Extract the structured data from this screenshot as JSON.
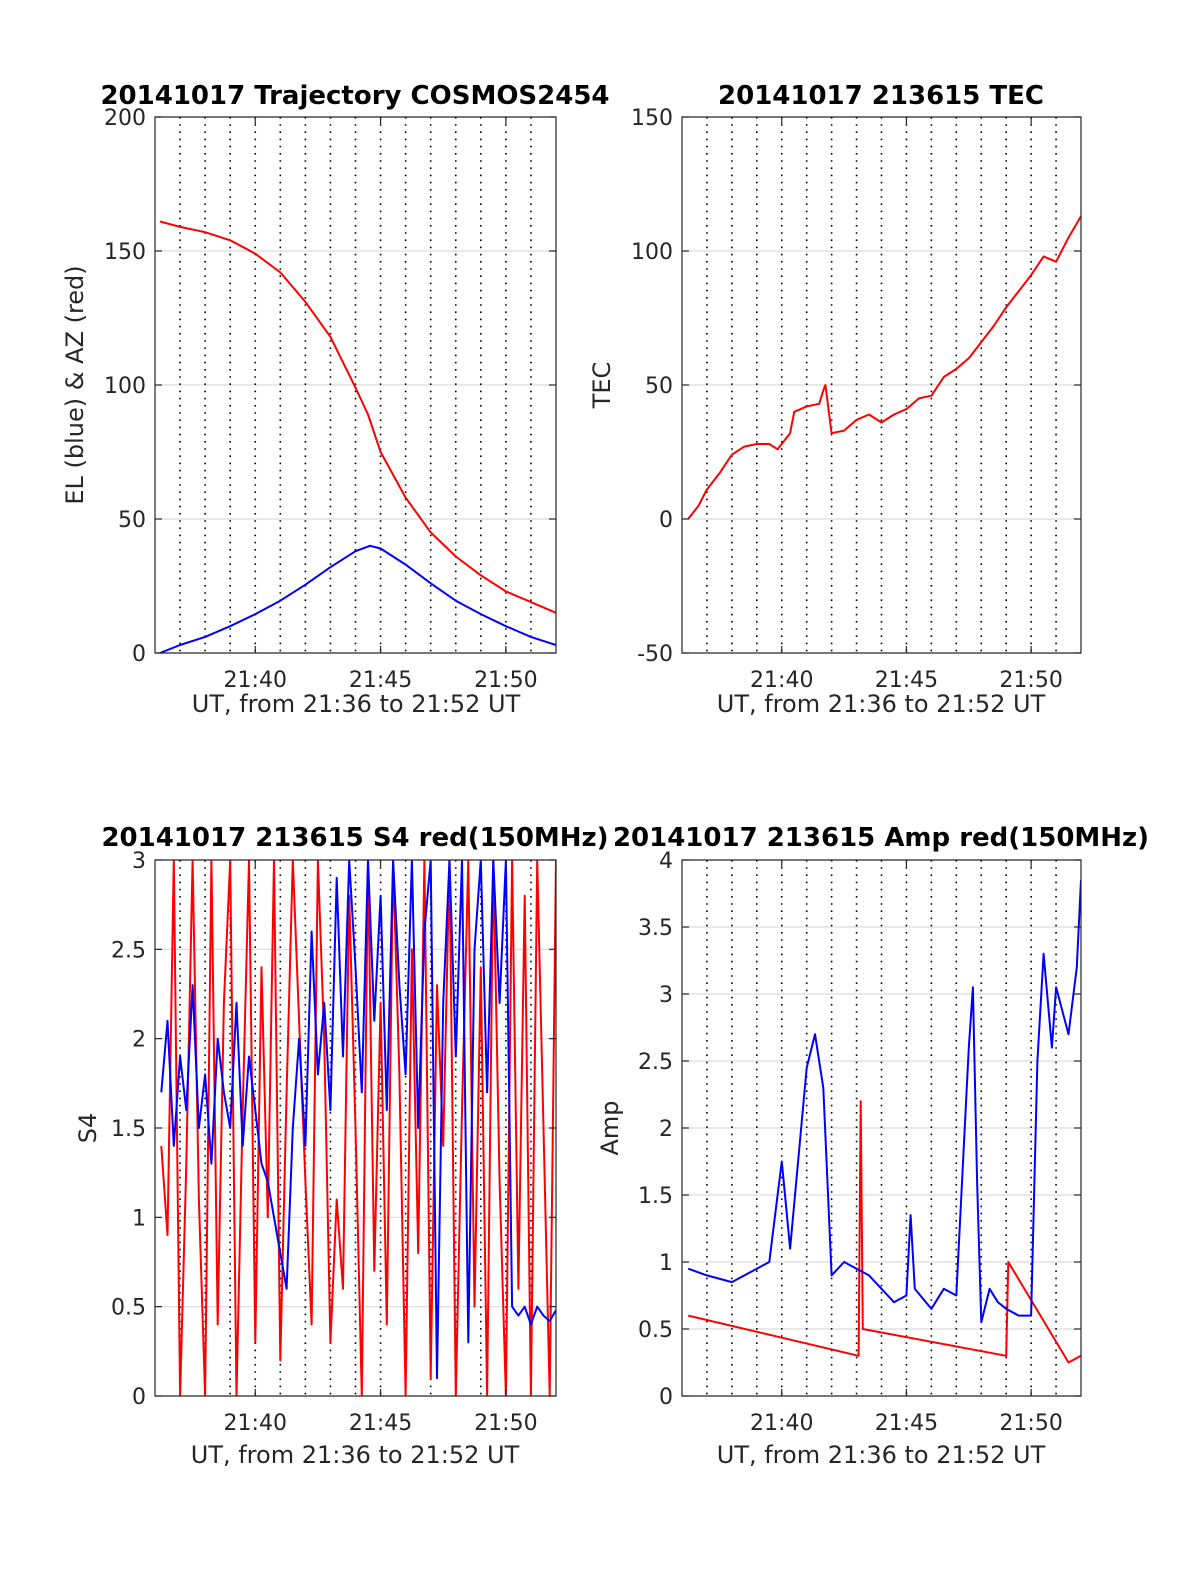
{
  "chart_data": [
    {
      "id": "traj",
      "type": "line",
      "title": "20141017 Trajectory COSMOS2454",
      "xlabel": "UT, from 21:36 to 21:52 UT",
      "ylabel": "EL (blue) & AZ (red)",
      "xlim": [
        "21:36",
        "21:52"
      ],
      "ylim": [
        0,
        200
      ],
      "yticks": [
        0,
        50,
        100,
        150,
        200
      ],
      "xtick_labels": [
        "21:40",
        "21:45",
        "21:50"
      ],
      "grid": "horizontal solid, vertical dotted every minute",
      "series": [
        {
          "color": "#ff0000",
          "x": [
            "21:36:12",
            "21:37",
            "21:38",
            "21:39",
            "21:40",
            "21:41",
            "21:42",
            "21:43",
            "21:44",
            "21:44:30",
            "21:45",
            "21:46",
            "21:47",
            "21:48",
            "21:49",
            "21:50",
            "21:51",
            "21:52"
          ],
          "y": [
            161,
            159,
            157,
            154,
            149,
            142,
            131,
            118,
            99,
            89,
            75,
            58,
            45,
            36,
            29,
            23,
            19,
            15
          ]
        },
        {
          "color": "#0000ff",
          "x": [
            "21:36:12",
            "21:37",
            "21:38",
            "21:39",
            "21:40",
            "21:41",
            "21:42",
            "21:43",
            "21:44",
            "21:44:35",
            "21:45",
            "21:46",
            "21:47",
            "21:48",
            "21:49",
            "21:50",
            "21:51",
            "21:52"
          ],
          "y": [
            0,
            3,
            6,
            10,
            14.5,
            19.5,
            25.5,
            32,
            38,
            40,
            39,
            33,
            26,
            19.5,
            14.5,
            10,
            6,
            3
          ]
        }
      ]
    },
    {
      "id": "tec",
      "type": "line",
      "title": "20141017 213615 TEC",
      "xlabel": "UT, from 21:36 to 21:52 UT",
      "ylabel": "TEC",
      "xlim": [
        "21:36",
        "21:52"
      ],
      "ylim": [
        -50,
        150
      ],
      "yticks": [
        -50,
        0,
        50,
        100,
        150
      ],
      "xtick_labels": [
        "21:40",
        "21:45",
        "21:50"
      ],
      "grid": "horizontal solid, vertical dotted every minute",
      "series": [
        {
          "color": "#ff0000",
          "x": [
            "21:36:15",
            "21:36:40",
            "21:37",
            "21:37:30",
            "21:38",
            "21:38:30",
            "21:39",
            "21:39:30",
            "21:39:50",
            "21:40:20",
            "21:40:30",
            "21:41",
            "21:41:30",
            "21:41:40",
            "21:41:45",
            "21:42",
            "21:42:30",
            "21:43",
            "21:43:30",
            "21:44",
            "21:44:30",
            "21:45",
            "21:45:30",
            "21:46",
            "21:46:30",
            "21:47",
            "21:47:30",
            "21:48",
            "21:48:30",
            "21:49",
            "21:49:30",
            "21:50",
            "21:50:30",
            "21:51",
            "21:51:30",
            "21:52"
          ],
          "y": [
            0,
            5,
            11,
            17,
            24,
            27,
            28,
            28,
            26,
            32,
            40,
            42,
            43,
            48,
            50,
            32,
            33,
            37,
            39,
            36,
            39,
            41,
            45,
            46,
            53,
            56,
            60,
            66,
            72,
            79,
            85,
            91,
            98,
            96,
            105,
            113
          ]
        }
      ]
    },
    {
      "id": "s4",
      "type": "line",
      "title": "20141017 213615 S4 red(150MHz)",
      "xlabel": "UT, from 21:36 to 21:52 UT",
      "ylabel": "S4",
      "xlim": [
        "21:36",
        "21:52"
      ],
      "ylim": [
        0,
        3
      ],
      "yticks": [
        0,
        0.5,
        1,
        1.5,
        2,
        2.5,
        3
      ],
      "xtick_labels": [
        "21:40",
        "21:45",
        "21:50"
      ],
      "grid": "horizontal solid, vertical dotted every minute",
      "series": [
        {
          "color": "#ff0000",
          "x": [
            "21:36:15",
            "21:36:30",
            "21:36:45",
            "21:37",
            "21:37:15",
            "21:37:30",
            "21:37:45",
            "21:38",
            "21:38:15",
            "21:38:30",
            "21:38:45",
            "21:39",
            "21:39:15",
            "21:39:30",
            "21:39:45",
            "21:40",
            "21:40:15",
            "21:40:30",
            "21:40:45",
            "21:41",
            "21:41:15",
            "21:41:30",
            "21:41:45",
            "21:42",
            "21:42:15",
            "21:42:30",
            "21:42:45",
            "21:43",
            "21:43:15",
            "21:43:30",
            "21:43:45",
            "21:44",
            "21:44:15",
            "21:44:30",
            "21:44:45",
            "21:45",
            "21:45:15",
            "21:45:30",
            "21:45:45",
            "21:46",
            "21:46:15",
            "21:46:30",
            "21:46:45",
            "21:47",
            "21:47:15",
            "21:47:30",
            "21:47:45",
            "21:48",
            "21:48:15",
            "21:48:30",
            "21:48:45",
            "21:49",
            "21:49:15",
            "21:49:30",
            "21:49:45",
            "21:50",
            "21:50:15",
            "21:50:30",
            "21:50:45",
            "21:51",
            "21:51:15",
            "21:51:30",
            "21:51:45",
            "21:52"
          ],
          "y": [
            1.4,
            0.9,
            3,
            0,
            1.3,
            3,
            1.1,
            0,
            3,
            0.4,
            2.2,
            3,
            0,
            1.6,
            3,
            0.3,
            2.4,
            1.0,
            3,
            0.2,
            1.7,
            3,
            2.1,
            1.2,
            0.4,
            3,
            2.0,
            0.3,
            1.1,
            0.6,
            2.8,
            1.5,
            0,
            3,
            0.7,
            2.2,
            0.4,
            3,
            1.8,
            0,
            2.5,
            0.8,
            3,
            0.1,
            2.3,
            1.4,
            3,
            0,
            1.6,
            3,
            0.5,
            2.4,
            0,
            3,
            1.2,
            0,
            3,
            0.6,
            2.8,
            0,
            3,
            1.5,
            0,
            3
          ]
        },
        {
          "color": "#0000ff",
          "x": [
            "21:36:15",
            "21:36:30",
            "21:36:45",
            "21:37",
            "21:37:15",
            "21:37:30",
            "21:37:45",
            "21:38",
            "21:38:15",
            "21:38:30",
            "21:38:45",
            "21:39",
            "21:39:15",
            "21:39:30",
            "21:39:45",
            "21:40",
            "21:40:15",
            "21:40:30",
            "21:40:45",
            "21:41",
            "21:41:15",
            "21:41:30",
            "21:41:45",
            "21:42",
            "21:42:15",
            "21:42:30",
            "21:42:45",
            "21:43",
            "21:43:15",
            "21:43:30",
            "21:43:45",
            "21:44",
            "21:44:15",
            "21:44:30",
            "21:44:45",
            "21:45",
            "21:45:15",
            "21:45:30",
            "21:45:45",
            "21:46",
            "21:46:15",
            "21:46:30",
            "21:46:45",
            "21:47",
            "21:47:15",
            "21:47:30",
            "21:47:45",
            "21:48",
            "21:48:15",
            "21:48:30",
            "21:48:45",
            "21:49",
            "21:49:15",
            "21:49:30",
            "21:49:45",
            "21:50",
            "21:50:15",
            "21:50:30",
            "21:50:45",
            "21:51",
            "21:51:15",
            "21:51:30",
            "21:51:45",
            "21:52"
          ],
          "y": [
            1.7,
            2.1,
            1.4,
            1.9,
            1.6,
            2.3,
            1.5,
            1.8,
            1.3,
            2.0,
            1.7,
            1.5,
            2.2,
            1.4,
            1.9,
            1.6,
            1.3,
            1.2,
            1.0,
            0.8,
            0.6,
            1.5,
            2.0,
            1.4,
            2.6,
            1.8,
            2.2,
            1.6,
            2.9,
            1.9,
            3,
            2.4,
            1.7,
            3,
            2.1,
            2.8,
            1.6,
            3,
            2.3,
            1.8,
            3,
            1.5,
            2.6,
            3,
            0.1,
            2.2,
            3,
            1.9,
            3,
            0.3,
            2.5,
            3,
            1.7,
            3,
            2.2,
            3,
            0.5,
            0.45,
            0.5,
            0.4,
            0.5,
            0.45,
            0.42,
            0.48
          ]
        }
      ]
    },
    {
      "id": "amp",
      "type": "line",
      "title": "20141017 213615 Amp red(150MHz)",
      "xlabel": "UT, from 21:36 to 21:52 UT",
      "ylabel": "Amp",
      "xlim": [
        "21:36",
        "21:52"
      ],
      "ylim": [
        0,
        4
      ],
      "yticks": [
        0,
        0.5,
        1,
        1.5,
        2,
        2.5,
        3,
        3.5,
        4
      ],
      "xtick_labels": [
        "21:40",
        "21:45",
        "21:50"
      ],
      "grid": "horizontal solid, vertical dotted every minute",
      "series": [
        {
          "color": "#ff0000",
          "x": [
            "21:36:15",
            "21:43:05",
            "21:43:10",
            "21:43:15",
            "21:49:00",
            "21:49:05",
            "21:51:30",
            "21:52"
          ],
          "y": [
            0.6,
            0.3,
            2.2,
            0.5,
            0.3,
            1.0,
            0.25,
            0.3
          ]
        },
        {
          "color": "#0000ff",
          "x": [
            "21:36:15",
            "21:37",
            "21:38",
            "21:39",
            "21:39:30",
            "21:39:50",
            "21:40",
            "21:40:20",
            "21:41",
            "21:41:20",
            "21:41:40",
            "21:42",
            "21:42:30",
            "21:43",
            "21:43:30",
            "21:44",
            "21:44:30",
            "21:45",
            "21:45:10",
            "21:45:20",
            "21:46",
            "21:46:30",
            "21:47",
            "21:47:30",
            "21:47:40",
            "21:47:50",
            "21:48",
            "21:48:20",
            "21:48:40",
            "21:49",
            "21:49:30",
            "21:50",
            "21:50:15",
            "21:50:30",
            "21:50:50",
            "21:51",
            "21:51:30",
            "21:51:50",
            "21:52"
          ],
          "y": [
            0.95,
            0.9,
            0.85,
            0.95,
            1.0,
            1.5,
            1.75,
            1.1,
            2.45,
            2.7,
            2.3,
            0.9,
            1.0,
            0.95,
            0.9,
            0.8,
            0.7,
            0.75,
            1.35,
            0.8,
            0.65,
            0.8,
            0.75,
            2.6,
            3.05,
            1.6,
            0.55,
            0.8,
            0.7,
            0.65,
            0.6,
            0.6,
            2.5,
            3.3,
            2.6,
            3.05,
            2.7,
            3.2,
            3.85
          ]
        }
      ]
    }
  ]
}
